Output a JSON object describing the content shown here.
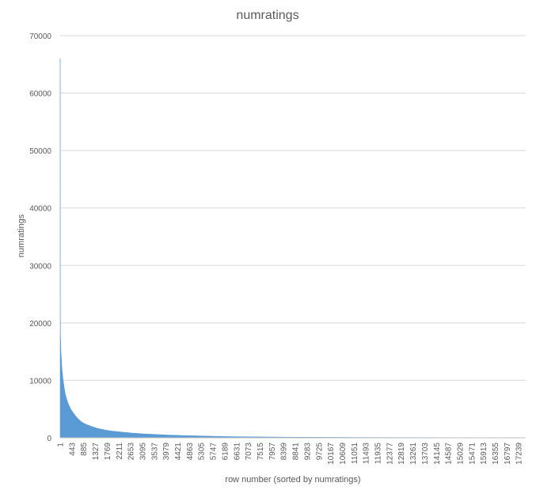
{
  "chart_data": {
    "type": "bar",
    "title": "numratings",
    "xlabel": "row number (sorted by numratings)",
    "ylabel": "numratings",
    "ylim": [
      0,
      70000
    ],
    "y_ticks": [
      "0",
      "10000",
      "20000",
      "30000",
      "40000",
      "50000",
      "60000",
      "70000"
    ],
    "x_range": [
      1,
      17500
    ],
    "x_tick_labels": [
      "1",
      "443",
      "885",
      "1327",
      "1769",
      "2211",
      "2653",
      "3095",
      "3537",
      "3979",
      "4421",
      "4863",
      "5305",
      "5747",
      "6189",
      "6631",
      "7073",
      "7515",
      "7957",
      "8399",
      "8841",
      "9283",
      "9725",
      "10167",
      "10609",
      "11051",
      "11493",
      "11935",
      "12377",
      "12819",
      "13261",
      "13703",
      "14145",
      "14587",
      "15029",
      "15471",
      "15913",
      "16355",
      "16797",
      "17239"
    ],
    "grid": true,
    "legend": "none",
    "color": "#5b9bd5",
    "series": [
      {
        "x": [
          1,
          2,
          3,
          5,
          8,
          12,
          20,
          30,
          45,
          60,
          80,
          100,
          130,
          160,
          200,
          250,
          300,
          350,
          400,
          443,
          500,
          600,
          700,
          800,
          885,
          1000,
          1200,
          1327,
          1500,
          1769,
          2000,
          2211,
          2653,
          3095,
          3537,
          3979,
          4421,
          4863,
          5305,
          5747,
          6189,
          7073,
          8399,
          9725,
          11051,
          12377,
          13703,
          15029,
          16355,
          17239,
          17500
        ],
        "values": [
          66000,
          62000,
          45000,
          26000,
          22500,
          18000,
          17000,
          15000,
          14000,
          12500,
          11500,
          10500,
          9500,
          8500,
          7500,
          6700,
          6000,
          5500,
          5000,
          4700,
          4300,
          3700,
          3200,
          2800,
          2550,
          2300,
          1950,
          1750,
          1550,
          1300,
          1150,
          1050,
          850,
          700,
          600,
          500,
          430,
          370,
          320,
          270,
          220,
          170,
          120,
          90,
          70,
          55,
          45,
          35,
          28,
          22,
          20
        ]
      }
    ]
  }
}
